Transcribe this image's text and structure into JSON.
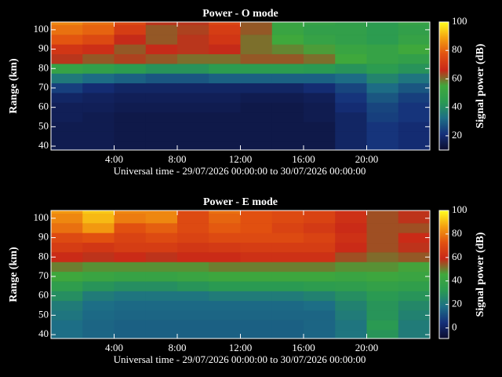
{
  "chart_data": [
    {
      "type": "heatmap",
      "title": "Power - O mode",
      "xlabel": "Universal time - 29/07/2026 00:00:00 to 30/07/2026 00:00:00",
      "ylabel": "Range (km)",
      "colorbar_label": "Signal power (dB)",
      "colormap": [
        "#0c0c2e",
        "#15307a",
        "#1d6f86",
        "#2a9a52",
        "#3fa83c",
        "#c82818",
        "#e25210",
        "#f4a010",
        "#ffff20"
      ],
      "x": [
        1,
        3,
        5,
        7,
        9,
        11,
        13,
        15,
        17,
        19,
        21,
        23
      ],
      "y": [
        40,
        45,
        50,
        55,
        60,
        65,
        70,
        75,
        80,
        85,
        90,
        95,
        100,
        105
      ],
      "z": [
        [
          15,
          15,
          14,
          14,
          14,
          14,
          14,
          14,
          14,
          18,
          22,
          20
        ],
        [
          15,
          15,
          14,
          14,
          14,
          14,
          14,
          14,
          14,
          18,
          22,
          20
        ],
        [
          15,
          15,
          14,
          14,
          14,
          14,
          14,
          14,
          14,
          18,
          22,
          20
        ],
        [
          16,
          15,
          14,
          14,
          14,
          14,
          14,
          14,
          15,
          18,
          24,
          22
        ],
        [
          16,
          16,
          15,
          15,
          15,
          15,
          14,
          14,
          15,
          20,
          25,
          22
        ],
        [
          18,
          17,
          16,
          16,
          16,
          16,
          15,
          15,
          16,
          22,
          28,
          24
        ],
        [
          24,
          20,
          18,
          18,
          18,
          18,
          18,
          18,
          20,
          25,
          32,
          28
        ],
        [
          35,
          32,
          30,
          28,
          28,
          30,
          30,
          30,
          30,
          32,
          38,
          34
        ],
        [
          50,
          48,
          45,
          42,
          42,
          45,
          45,
          45,
          44,
          42,
          45,
          42
        ],
        [
          65,
          62,
          64,
          62,
          60,
          60,
          62,
          62,
          60,
          55,
          50,
          48
        ],
        [
          70,
          68,
          62,
          66,
          65,
          66,
          60,
          58,
          56,
          52,
          50,
          55
        ],
        [
          78,
          75,
          66,
          62,
          65,
          70,
          60,
          55,
          50,
          48,
          45,
          50
        ],
        [
          82,
          80,
          72,
          62,
          64,
          72,
          62,
          52,
          48,
          48,
          45,
          48
        ],
        [
          85,
          82,
          75,
          65,
          65,
          74,
          62,
          52,
          50,
          48,
          45,
          50
        ]
      ],
      "xlim": [
        0,
        24
      ],
      "xticks": [
        {
          "value": 4,
          "label": "4:00"
        },
        {
          "value": 8,
          "label": "8:00"
        },
        {
          "value": 12,
          "label": "12:00"
        },
        {
          "value": 16,
          "label": "16:00"
        },
        {
          "value": 20,
          "label": "20:00"
        }
      ],
      "ylim": [
        38,
        104
      ],
      "yticks": [
        40,
        50,
        60,
        70,
        80,
        90,
        100
      ],
      "zlim": [
        10,
        100
      ],
      "zticks": [
        20,
        40,
        60,
        80,
        100
      ]
    },
    {
      "type": "heatmap",
      "title": "Power - E mode",
      "xlabel": "Universal time - 29/07/2026 00:00:00 to 30/07/2026 00:00:00",
      "ylabel": "Range (km)",
      "colorbar_label": "Signal power (dB)",
      "colormap": [
        "#0c0c2e",
        "#15307a",
        "#1d6f86",
        "#2a9a52",
        "#3fa83c",
        "#c82818",
        "#e25210",
        "#f4a010",
        "#ffff20"
      ],
      "x": [
        1,
        3,
        5,
        7,
        9,
        11,
        13,
        15,
        17,
        19,
        21,
        23
      ],
      "y": [
        40,
        45,
        50,
        55,
        60,
        65,
        70,
        75,
        80,
        85,
        90,
        95,
        100,
        105
      ],
      "z": [
        [
          18,
          16,
          15,
          15,
          15,
          15,
          15,
          15,
          16,
          20,
          30,
          22
        ],
        [
          18,
          16,
          15,
          15,
          15,
          15,
          15,
          15,
          16,
          20,
          32,
          22
        ],
        [
          20,
          17,
          16,
          16,
          16,
          16,
          16,
          16,
          16,
          22,
          30,
          24
        ],
        [
          22,
          18,
          17,
          17,
          17,
          17,
          17,
          17,
          18,
          24,
          30,
          26
        ],
        [
          28,
          22,
          20,
          20,
          20,
          22,
          22,
          22,
          24,
          28,
          32,
          30
        ],
        [
          35,
          30,
          28,
          28,
          30,
          32,
          32,
          32,
          34,
          35,
          38,
          36
        ],
        [
          45,
          42,
          40,
          40,
          42,
          44,
          44,
          44,
          44,
          42,
          44,
          42
        ],
        [
          50,
          48,
          48,
          48,
          48,
          50,
          50,
          50,
          50,
          48,
          48,
          46
        ],
        [
          60,
          58,
          60,
          58,
          60,
          60,
          62,
          62,
          62,
          55,
          52,
          54
        ],
        [
          66,
          64,
          66,
          66,
          64,
          65,
          66,
          66,
          66,
          60,
          55,
          58
        ],
        [
          70,
          72,
          68,
          70,
          68,
          70,
          70,
          70,
          68,
          62,
          55,
          60
        ],
        [
          78,
          85,
          72,
          75,
          70,
          74,
          72,
          68,
          65,
          60,
          55,
          55
        ],
        [
          82,
          90,
          80,
          82,
          70,
          76,
          72,
          70,
          68,
          62,
          55,
          58
        ],
        [
          85,
          92,
          82,
          82,
          70,
          78,
          72,
          70,
          68,
          62,
          55,
          58
        ]
      ],
      "xlim": [
        0,
        24
      ],
      "xticks": [
        {
          "value": 4,
          "label": "4:00"
        },
        {
          "value": 8,
          "label": "8:00"
        },
        {
          "value": 12,
          "label": "12:00"
        },
        {
          "value": 16,
          "label": "16:00"
        },
        {
          "value": 20,
          "label": "20:00"
        }
      ],
      "ylim": [
        38,
        104
      ],
      "yticks": [
        40,
        50,
        60,
        70,
        80,
        90,
        100
      ],
      "zlim": [
        -9,
        100
      ],
      "zticks": [
        0,
        20,
        40,
        60,
        80,
        100
      ]
    }
  ]
}
